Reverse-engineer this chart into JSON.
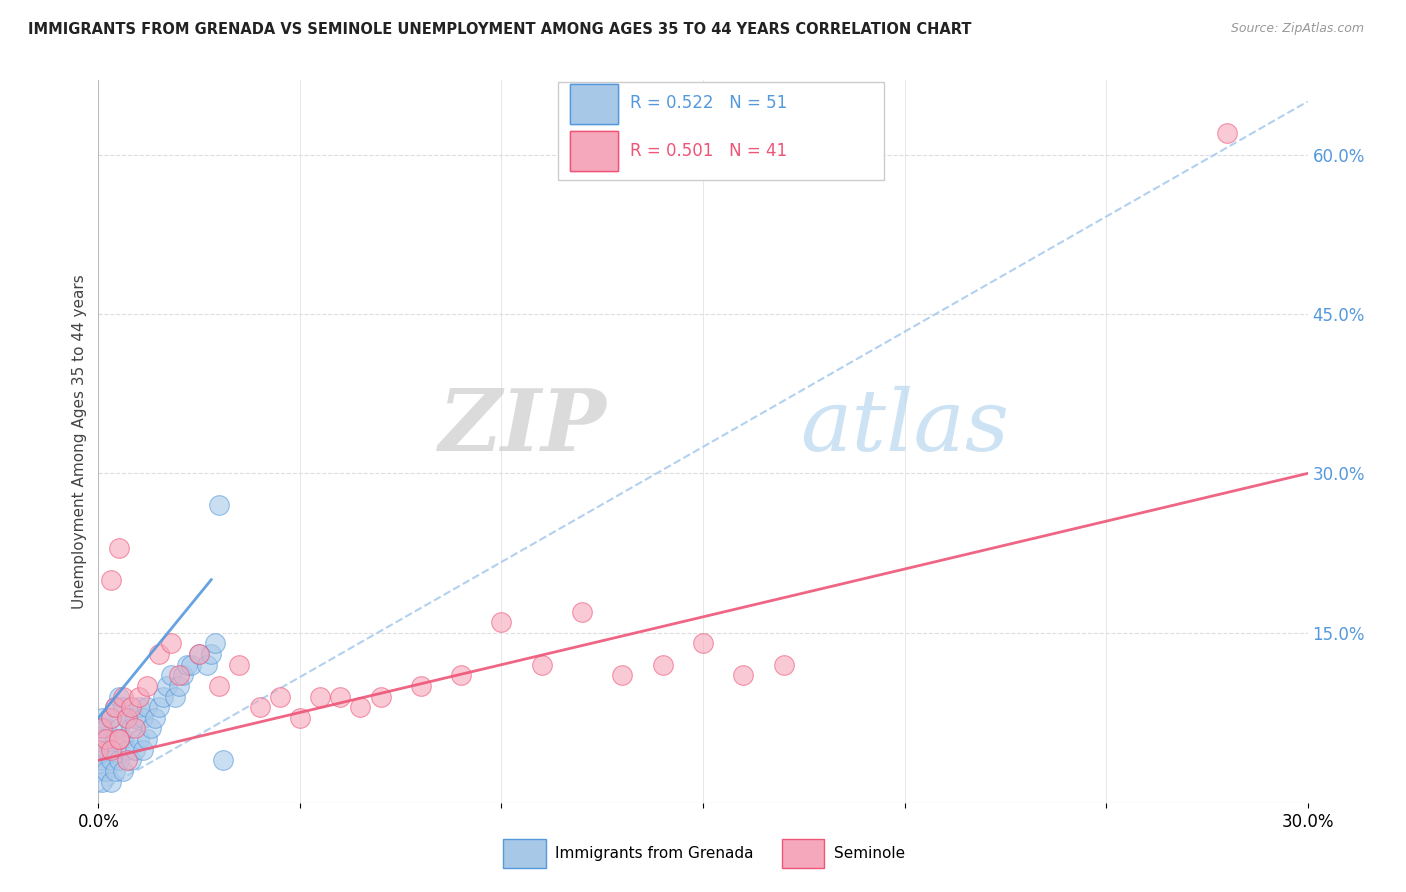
{
  "title": "IMMIGRANTS FROM GRENADA VS SEMINOLE UNEMPLOYMENT AMONG AGES 35 TO 44 YEARS CORRELATION CHART",
  "source": "Source: ZipAtlas.com",
  "ylabel": "Unemployment Among Ages 35 to 44 years",
  "right_yticks": [
    0.0,
    0.15,
    0.3,
    0.45,
    0.6
  ],
  "right_ytick_labels": [
    "",
    "15.0%",
    "30.0%",
    "45.0%",
    "60.0%"
  ],
  "xlim": [
    0.0,
    0.3
  ],
  "ylim": [
    -0.01,
    0.67
  ],
  "legend_blue_r": "R = 0.522",
  "legend_blue_n": "N = 51",
  "legend_pink_r": "R = 0.501",
  "legend_pink_n": "N = 41",
  "series1_name": "Immigrants from Grenada",
  "series2_name": "Seminole",
  "series1_color": "#a8c8e8",
  "series2_color": "#f5a8bc",
  "trendline1_color": "#5599dd",
  "trendline2_color": "#ee5577",
  "ref_line_color": "#aaccee",
  "watermark_zip": "ZIP",
  "watermark_atlas": "atlas",
  "blue_x": [
    0.0,
    0.0,
    0.0,
    0.001,
    0.001,
    0.001,
    0.001,
    0.002,
    0.002,
    0.002,
    0.003,
    0.003,
    0.003,
    0.004,
    0.004,
    0.004,
    0.005,
    0.005,
    0.005,
    0.006,
    0.006,
    0.006,
    0.007,
    0.007,
    0.008,
    0.008,
    0.009,
    0.009,
    0.01,
    0.01,
    0.011,
    0.011,
    0.012,
    0.012,
    0.013,
    0.014,
    0.015,
    0.016,
    0.017,
    0.018,
    0.019,
    0.02,
    0.021,
    0.022,
    0.023,
    0.025,
    0.027,
    0.028,
    0.029,
    0.03,
    0.031
  ],
  "blue_y": [
    0.02,
    0.04,
    0.06,
    0.01,
    0.03,
    0.05,
    0.07,
    0.02,
    0.04,
    0.06,
    0.01,
    0.03,
    0.07,
    0.02,
    0.05,
    0.08,
    0.03,
    0.06,
    0.09,
    0.02,
    0.05,
    0.08,
    0.04,
    0.07,
    0.03,
    0.06,
    0.04,
    0.07,
    0.05,
    0.08,
    0.04,
    0.07,
    0.05,
    0.08,
    0.06,
    0.07,
    0.08,
    0.09,
    0.1,
    0.11,
    0.09,
    0.1,
    0.11,
    0.12,
    0.12,
    0.13,
    0.12,
    0.13,
    0.14,
    0.27,
    0.03
  ],
  "pink_x": [
    0.0,
    0.001,
    0.002,
    0.003,
    0.003,
    0.004,
    0.005,
    0.005,
    0.006,
    0.007,
    0.008,
    0.009,
    0.01,
    0.012,
    0.015,
    0.018,
    0.02,
    0.025,
    0.03,
    0.035,
    0.04,
    0.045,
    0.05,
    0.055,
    0.06,
    0.065,
    0.07,
    0.08,
    0.09,
    0.1,
    0.11,
    0.12,
    0.13,
    0.14,
    0.15,
    0.16,
    0.17,
    0.003,
    0.005,
    0.007,
    0.28
  ],
  "pink_y": [
    0.04,
    0.06,
    0.05,
    0.07,
    0.2,
    0.08,
    0.05,
    0.23,
    0.09,
    0.07,
    0.08,
    0.06,
    0.09,
    0.1,
    0.13,
    0.14,
    0.11,
    0.13,
    0.1,
    0.12,
    0.08,
    0.09,
    0.07,
    0.09,
    0.09,
    0.08,
    0.09,
    0.1,
    0.11,
    0.16,
    0.12,
    0.17,
    0.11,
    0.12,
    0.14,
    0.11,
    0.12,
    0.04,
    0.05,
    0.03,
    0.62
  ],
  "blue_trendline_x": [
    0.0,
    0.028
  ],
  "blue_trendline_y": [
    0.07,
    0.2
  ],
  "pink_trendline_x": [
    0.0,
    0.3
  ],
  "pink_trendline_y": [
    0.03,
    0.3
  ],
  "ref_line_x": [
    0.0,
    0.3
  ],
  "ref_line_y": [
    0.0,
    0.65
  ]
}
